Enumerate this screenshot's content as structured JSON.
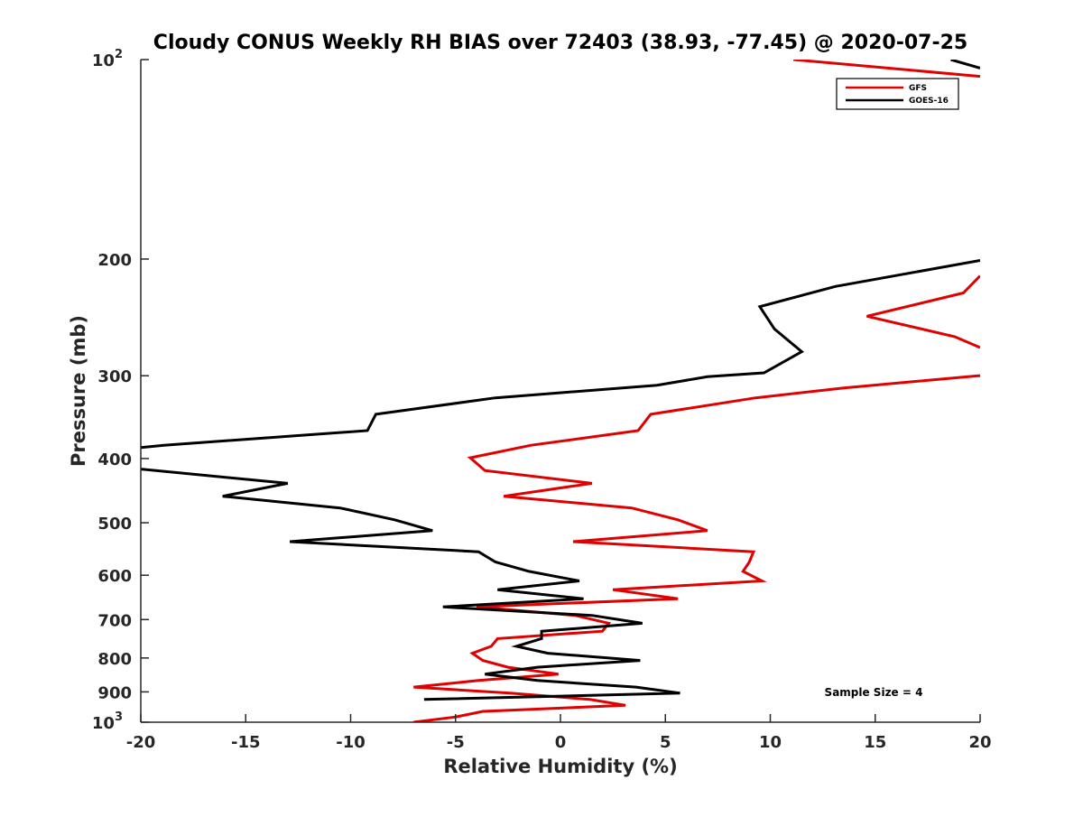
{
  "chart_data": {
    "type": "line",
    "title": "Cloudy CONUS Weekly RH BIAS over 72403 (38.93, -77.45) @ 2020-07-25",
    "xlabel": "Relative Humidity (%)",
    "ylabel": "Pressure (mb)",
    "xlim": [
      -20,
      20
    ],
    "ylim": [
      100,
      1000
    ],
    "y_scale": "log",
    "y_reversed": true,
    "x_ticks": [
      "-20",
      "-15",
      "-10",
      "-5",
      "0",
      "5",
      "10",
      "15",
      "20"
    ],
    "y_ticks": [
      {
        "value": 100,
        "base": "10",
        "exp": "2"
      },
      {
        "value": 200,
        "label": "200"
      },
      {
        "value": 300,
        "label": "300"
      },
      {
        "value": 400,
        "label": "400"
      },
      {
        "value": 500,
        "label": "500"
      },
      {
        "value": 600,
        "label": "600"
      },
      {
        "value": 700,
        "label": "700"
      },
      {
        "value": 800,
        "label": "800"
      },
      {
        "value": 900,
        "label": "900"
      },
      {
        "value": 1000,
        "base": "10",
        "exp": "3"
      }
    ],
    "grid": false,
    "legend_position": "top-right",
    "annotation": "Sample Size = 4",
    "series": [
      {
        "name": "GFS",
        "color": "#e00000",
        "segments": [
          [
            [
              11.1,
              100
            ],
            [
              20,
              106
            ]
          ],
          [
            [
              20,
              212
            ],
            [
              19.2,
              225
            ],
            [
              14.6,
              244
            ],
            [
              18.8,
              262
            ],
            [
              20,
              272
            ]
          ],
          [
            [
              20,
              300
            ],
            [
              19.9,
              300
            ],
            [
              13.5,
              313
            ],
            [
              9.3,
              324
            ],
            [
              4.3,
              343
            ],
            [
              3.7,
              363
            ],
            [
              -1.4,
              382
            ],
            [
              -4.3,
              399
            ],
            [
              -3.6,
              417
            ],
            [
              1.5,
              436
            ],
            [
              -2.7,
              456
            ],
            [
              3.4,
              475
            ],
            [
              5.6,
              495
            ],
            [
              7.0,
              514
            ],
            [
              0.6,
              534
            ],
            [
              9.2,
              553
            ],
            [
              9.0,
              573
            ],
            [
              8.7,
              592
            ],
            [
              9.6,
              612
            ],
            [
              2.5,
              631
            ],
            [
              5.6,
              651
            ],
            [
              -4.0,
              670
            ],
            [
              0.7,
              690
            ],
            [
              2.3,
              709
            ],
            [
              2.0,
              729
            ],
            [
              -3.0,
              748
            ],
            [
              -3.3,
              768
            ],
            [
              -4.2,
              787
            ],
            [
              -3.7,
              807
            ],
            [
              -2.5,
              826
            ],
            [
              -0.1,
              846
            ],
            [
              -3.9,
              865
            ],
            [
              -7.0,
              885
            ],
            [
              -2.4,
              904
            ],
            [
              1.4,
              924
            ],
            [
              3.1,
              943
            ],
            [
              -3.7,
              963
            ],
            [
              -5.0,
              982
            ],
            [
              -7.0,
              1000
            ]
          ]
        ]
      },
      {
        "name": "GOES-16",
        "color": "#000000",
        "segments": [
          [
            [
              18.6,
              100
            ],
            [
              20,
              103
            ]
          ],
          [
            [
              20,
              201
            ],
            [
              13.1,
              220
            ],
            [
              9.5,
              236
            ],
            [
              10.2,
              255
            ],
            [
              11.5,
              276
            ],
            [
              9.7,
              297
            ],
            [
              7.0,
              301
            ],
            [
              4.6,
              310
            ],
            [
              -3.1,
              324
            ],
            [
              -8.8,
              343
            ],
            [
              -9.2,
              363
            ],
            [
              -18.9,
              382
            ],
            [
              -20,
              385
            ]
          ],
          [
            [
              -20,
              415
            ],
            [
              -13.0,
              436
            ],
            [
              -16.1,
              456
            ],
            [
              -10.5,
              475
            ],
            [
              -7.9,
              495
            ],
            [
              -6.1,
              514
            ],
            [
              -12.9,
              534
            ],
            [
              -3.9,
              553
            ],
            [
              -3.1,
              573
            ],
            [
              -1.5,
              592
            ],
            [
              0.9,
              612
            ],
            [
              -3.0,
              631
            ],
            [
              1.1,
              651
            ],
            [
              -5.6,
              670
            ],
            [
              1.5,
              690
            ],
            [
              3.9,
              709
            ],
            [
              -0.9,
              729
            ],
            [
              -0.9,
              748
            ],
            [
              -2.1,
              768
            ],
            [
              -0.6,
              787
            ],
            [
              3.8,
              807
            ],
            [
              -1.1,
              826
            ],
            [
              -3.6,
              846
            ],
            [
              -1.1,
              865
            ],
            [
              3.6,
              885
            ],
            [
              5.7,
              904
            ],
            [
              -6.5,
              924
            ]
          ]
        ]
      }
    ]
  }
}
